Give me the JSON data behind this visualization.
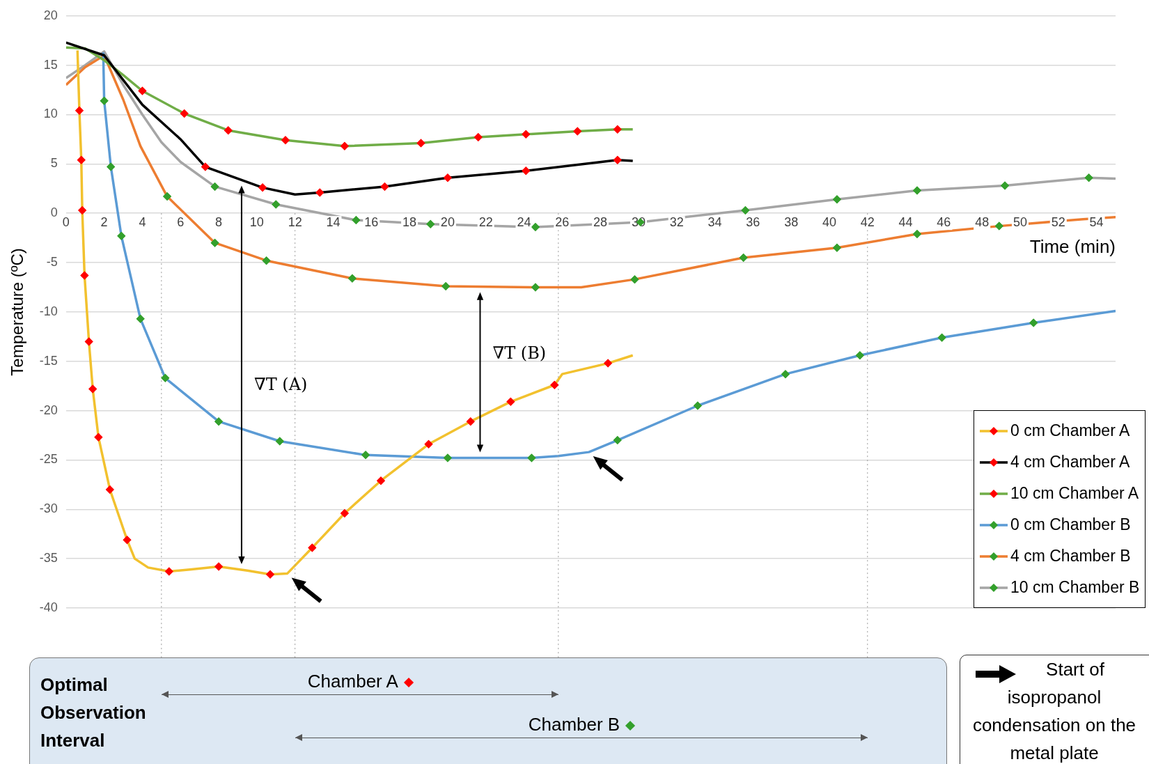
{
  "chart_data": {
    "type": "line",
    "xlabel": "Time (min)",
    "ylabel": "Temperature (ºC)",
    "xlim": [
      0,
      55
    ],
    "ylim": [
      -40,
      20
    ],
    "xticks": [
      0,
      2,
      4,
      6,
      8,
      10,
      12,
      14,
      16,
      18,
      20,
      22,
      24,
      26,
      28,
      30,
      32,
      34,
      36,
      38,
      40,
      42,
      44,
      46,
      48,
      50,
      52,
      54
    ],
    "yticks": [
      -40,
      -35,
      -30,
      -25,
      -20,
      -15,
      -10,
      -5,
      0,
      5,
      10,
      15,
      20
    ],
    "grid": "y",
    "legend": "bottom right",
    "marker": "diamond",
    "line_style": "solid",
    "series": [
      {
        "name": "0 cm Chamber A",
        "color": "#f2c12e",
        "x": [
          0.6,
          0.7,
          0.8,
          0.85,
          0.97,
          1.2,
          1.4,
          1.7,
          2.3,
          3.2,
          3.6,
          4.3,
          5.4,
          6.5,
          8,
          9.5,
          10.7,
          11.6,
          12.9,
          14.6,
          16.5,
          19,
          21.2,
          23.3,
          25.6,
          26,
          28.4,
          29.7
        ],
        "values": [
          16.5,
          10.4,
          5.4,
          0.3,
          -6.3,
          -13,
          -17.8,
          -22.7,
          -28,
          -33.1,
          -35,
          -35.9,
          -36.3,
          -36.1,
          -35.8,
          -36.2,
          -36.6,
          -36.5,
          -33.9,
          -30.4,
          -27.1,
          -23.4,
          -21.1,
          -19.1,
          -17.4,
          -16.3,
          -15.2,
          -14.4
        ],
        "colors": [
          null,
          "#ff0000",
          "#ff0000",
          "#ff0000",
          "#ff0000",
          "#ff0000",
          "#ff0000",
          "#ff0000",
          "#ff0000",
          "#ff0000",
          null,
          null,
          "#ff0000",
          null,
          "#ff0000",
          null,
          "#ff0000",
          null,
          "#ff0000",
          "#ff0000",
          "#ff0000",
          "#ff0000",
          "#ff0000",
          "#ff0000",
          "#ff0000",
          null,
          "#ff0000",
          null
        ]
      },
      {
        "name": "4 cm Chamber A",
        "color": "#000000",
        "x": [
          0,
          2,
          4,
          6,
          7.3,
          10.3,
          12,
          13.3,
          16.7,
          20,
          24.1,
          28.9,
          29.7
        ],
        "values": [
          17.3,
          16,
          11,
          7.5,
          4.7,
          2.6,
          1.9,
          2.1,
          2.7,
          3.6,
          4.3,
          5.4,
          5.3
        ],
        "colors": [
          null,
          null,
          null,
          null,
          "#ff0000",
          "#ff0000",
          null,
          "#ff0000",
          "#ff0000",
          "#ff0000",
          "#ff0000",
          "#ff0000",
          null
        ]
      },
      {
        "name": "10 cm Chamber A",
        "color": "#70ad47",
        "x": [
          0,
          1,
          2,
          3,
          4,
          6.2,
          8.5,
          11.5,
          14.6,
          18.6,
          21.6,
          24.1,
          26.8,
          28.9,
          29.7
        ],
        "values": [
          16.8,
          16.7,
          15.5,
          14,
          12.4,
          10.1,
          8.4,
          7.4,
          6.8,
          7.1,
          7.7,
          8,
          8.3,
          8.5,
          8.5
        ],
        "colors": [
          null,
          null,
          null,
          null,
          "#ff0000",
          "#ff0000",
          "#ff0000",
          "#ff0000",
          "#ff0000",
          "#ff0000",
          "#ff0000",
          "#ff0000",
          "#ff0000",
          "#ff0000",
          null
        ]
      },
      {
        "name": "0 cm Chamber B",
        "color": "#5b9bd5",
        "x": [
          1.95,
          2,
          2.35,
          2.9,
          3.9,
          5.2,
          8,
          11.2,
          15.7,
          20,
          24.4,
          25.8,
          27.4,
          28.9,
          33.1,
          37.7,
          41.6,
          45.9,
          50.7,
          55
        ],
        "values": [
          16.3,
          11.4,
          4.7,
          -2.3,
          -10.7,
          -16.7,
          -21.1,
          -23.1,
          -24.5,
          -24.8,
          -24.8,
          -24.6,
          -24.2,
          -23,
          -19.5,
          -16.3,
          -14.4,
          -12.6,
          -11.1,
          -9.9
        ],
        "colors": [
          null,
          "#33a02c",
          "#33a02c",
          "#33a02c",
          "#33a02c",
          "#33a02c",
          "#33a02c",
          "#33a02c",
          "#33a02c",
          "#33a02c",
          "#33a02c",
          null,
          null,
          "#33a02c",
          "#33a02c",
          "#33a02c",
          "#33a02c",
          "#33a02c",
          "#33a02c",
          null
        ]
      },
      {
        "name": "4 cm Chamber B",
        "color": "#ed7d31",
        "x": [
          0,
          1,
          2,
          3,
          3.9,
          5.3,
          7.8,
          10.5,
          15,
          19.9,
          24.6,
          27,
          29.8,
          35.5,
          40.4,
          44.6,
          48.9,
          53.3,
          55
        ],
        "values": [
          13,
          14.8,
          16,
          11.5,
          6.8,
          1.7,
          -3,
          -4.8,
          -6.6,
          -7.4,
          -7.5,
          -7.5,
          -6.7,
          -4.5,
          -3.5,
          -2.1,
          -1.3,
          -0.6,
          -0.4
        ],
        "colors": [
          null,
          null,
          null,
          null,
          null,
          "#33a02c",
          "#33a02c",
          "#33a02c",
          "#33a02c",
          "#33a02c",
          "#33a02c",
          null,
          "#33a02c",
          "#33a02c",
          "#33a02c",
          "#33a02c",
          "#33a02c",
          null,
          null
        ]
      },
      {
        "name": "10 cm Chamber B",
        "color": "#a5a5a5",
        "x": [
          0,
          1,
          2,
          3,
          4,
          5,
          6,
          7.8,
          11,
          15.2,
          19.1,
          24.6,
          28,
          30.1,
          35.6,
          40.4,
          44.6,
          49.2,
          53.6,
          55
        ],
        "values": [
          13.7,
          15,
          16.4,
          13,
          10,
          7.2,
          5.2,
          2.7,
          0.9,
          -0.7,
          -1.1,
          -1.4,
          -1.1,
          -0.9,
          0.3,
          1.4,
          2.3,
          2.8,
          3.6,
          3.5
        ],
        "colors": [
          null,
          null,
          null,
          null,
          null,
          null,
          null,
          "#33a02c",
          "#33a02c",
          "#33a02c",
          "#33a02c",
          "#33a02c",
          null,
          "#33a02c",
          "#33a02c",
          "#33a02c",
          "#33a02c",
          "#33a02c",
          "#33a02c",
          null
        ]
      }
    ],
    "ref_lines": [
      {
        "axis": "x",
        "value": 5,
        "color": "#999999",
        "line_style": "dotted"
      },
      {
        "axis": "x",
        "value": 12,
        "color": "#999999",
        "line_style": "dotted"
      },
      {
        "axis": "x",
        "value": 25.8,
        "color": "#999999",
        "line_style": "dotted"
      },
      {
        "axis": "x",
        "value": 42,
        "color": "#999999",
        "line_style": "dotted"
      }
    ],
    "annotations": [
      "∇T (A)",
      "∇T (B)",
      "Optimal Observation Interval",
      "Chamber A",
      "Chamber B",
      "Start of isopropanol condensation on the metal plate"
    ]
  }
}
